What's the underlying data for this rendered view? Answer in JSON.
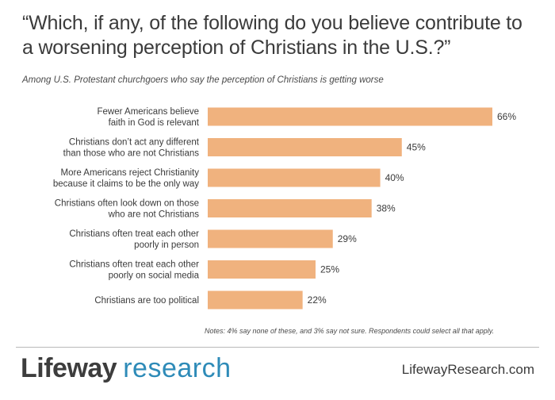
{
  "title": "“Which, if any, of the following do you believe contribute to a worsening perception of Christians in the U.S.?”",
  "subtitle": "Among U.S. Protestant churchgoers who say the perception of Christians is getting worse",
  "notes": "Notes: 4% say none of these, and 3% say not sure. Respondents could select all that apply.",
  "logo": {
    "brand": "Lifeway",
    "research": "research"
  },
  "site": "LifewayResearch.com",
  "colors": {
    "bar": "#f0b27e",
    "logo_accent": "#2e8bb8"
  },
  "chart_data": {
    "type": "bar",
    "orientation": "horizontal",
    "categories": [
      [
        "Fewer Americans believe",
        "faith in God is relevant"
      ],
      [
        "Christians don’t act any different",
        "than those who are not Christians"
      ],
      [
        "More Americans reject Christianity",
        "because it claims to be the only way"
      ],
      [
        "Christians often look down on those",
        "who are not Christians"
      ],
      [
        "Christians often treat each other",
        "poorly in person"
      ],
      [
        "Christians often treat each other",
        "poorly on social media"
      ],
      [
        "Christians are too political"
      ]
    ],
    "values": [
      66,
      45,
      40,
      38,
      29,
      25,
      22
    ],
    "value_labels": [
      "66%",
      "45%",
      "40%",
      "38%",
      "29%",
      "25%",
      "22%"
    ],
    "xlim": [
      0,
      66
    ],
    "grid": false
  }
}
